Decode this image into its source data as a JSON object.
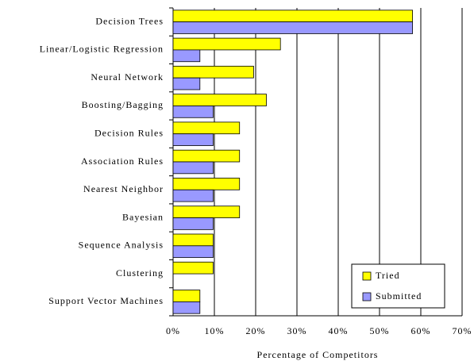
{
  "chart_data": {
    "type": "hbar",
    "xlabel": "Percentage of Competitors",
    "categories": [
      "Decision Trees",
      "Linear/Logistic Regression",
      "Neural Network",
      "Boosting/Bagging",
      "Decision Rules",
      "Association Rules",
      "Nearest Neighbor",
      "Bayesian",
      "Sequence Analysis",
      "Clustering",
      "Support Vector Machines"
    ],
    "series": [
      {
        "name": "Tried",
        "color": "#ffff00",
        "values": [
          58,
          26,
          19.5,
          22.6,
          16.1,
          16.1,
          16.1,
          16.1,
          9.7,
          9.7,
          6.5
        ]
      },
      {
        "name": "Submitted",
        "color": "#9999ff",
        "values": [
          58,
          6.5,
          6.5,
          9.7,
          9.7,
          9.7,
          9.7,
          9.7,
          9.7,
          0,
          6.5
        ]
      }
    ],
    "xlim": [
      0,
      70
    ],
    "xticks": [
      {
        "value": 0,
        "label": "0%"
      },
      {
        "value": 10,
        "label": "10%"
      },
      {
        "value": 20,
        "label": "20%"
      },
      {
        "value": 30,
        "label": "30%"
      },
      {
        "value": 40,
        "label": "40%"
      },
      {
        "value": 50,
        "label": "50%"
      },
      {
        "value": 60,
        "label": "60%"
      },
      {
        "value": 70,
        "label": "70%"
      }
    ],
    "grid": true,
    "legend": "lower right"
  }
}
